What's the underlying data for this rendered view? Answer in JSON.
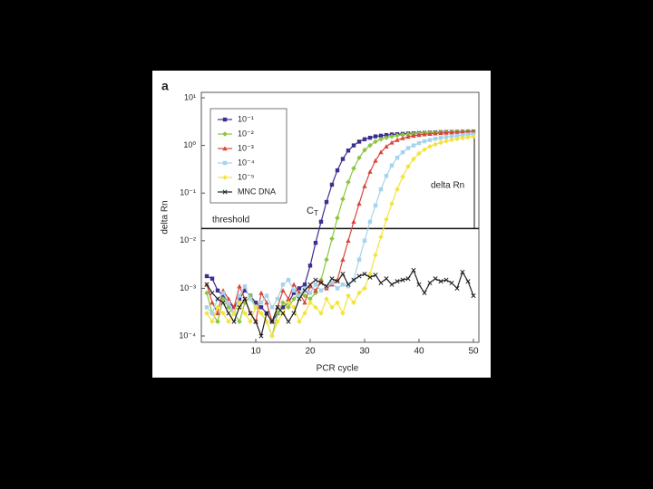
{
  "chart_data": {
    "type": "line",
    "panel_label": "a",
    "x_label": "PCR cycle",
    "y_label": "delta Rn",
    "log_y": true,
    "legend": "upper left",
    "threshold": 0.018,
    "annotations": {
      "threshold": "threshold",
      "delta_rn": "delta Rn",
      "ct": {
        "base": "C",
        "subscript": "T"
      }
    },
    "xlim": [
      0,
      51
    ],
    "xticks": [
      10,
      20,
      30,
      40,
      50
    ],
    "ylim": [
      0.0001,
      10
    ],
    "yticks": [
      {
        "value": 10,
        "label": "10¹"
      },
      {
        "value": 1,
        "label": "10⁰"
      },
      {
        "value": 0.1,
        "label": "10⁻¹"
      },
      {
        "value": 0.01,
        "label": "10⁻²"
      },
      {
        "value": 0.001,
        "label": "10⁻³"
      },
      {
        "value": 0.0001,
        "label": "10⁻⁴"
      }
    ],
    "x": [
      1,
      2,
      3,
      4,
      5,
      6,
      7,
      8,
      9,
      10,
      11,
      12,
      13,
      14,
      15,
      16,
      17,
      18,
      19,
      20,
      21,
      22,
      23,
      24,
      25,
      26,
      27,
      28,
      29,
      30,
      31,
      32,
      33,
      34,
      35,
      36,
      37,
      38,
      39,
      40,
      41,
      42,
      43,
      44,
      45,
      46,
      47,
      48,
      49,
      50
    ],
    "series": [
      {
        "name": "10⁻¹",
        "color": "#3b2f8f",
        "marker": "square",
        "values": [
          0.0018,
          0.0016,
          0.0009,
          0.0007,
          0.0005,
          0.0004,
          0.0006,
          0.0009,
          0.0007,
          0.0005,
          0.0004,
          0.0003,
          0.0002,
          0.0003,
          0.0004,
          0.0005,
          0.0008,
          0.001,
          0.0012,
          0.003,
          0.009,
          0.025,
          0.065,
          0.15,
          0.3,
          0.52,
          0.78,
          1.0,
          1.2,
          1.35,
          1.45,
          1.55,
          1.6,
          1.65,
          1.7,
          1.72,
          1.75,
          1.78,
          1.8,
          1.82,
          1.84,
          1.86,
          1.88,
          1.9,
          1.91,
          1.92,
          1.93,
          1.94,
          1.95,
          1.96
        ]
      },
      {
        "name": "10⁻²",
        "color": "#8cc63f",
        "marker": "diamond",
        "values": [
          0.0008,
          0.0003,
          0.0002,
          0.0006,
          0.0004,
          0.0003,
          0.0002,
          0.0005,
          0.0007,
          0.0004,
          0.0003,
          0.0002,
          0.0001,
          0.0003,
          0.0005,
          0.0004,
          0.0006,
          0.0008,
          0.0007,
          0.0006,
          0.0008,
          0.0015,
          0.004,
          0.011,
          0.03,
          0.075,
          0.17,
          0.33,
          0.55,
          0.8,
          1.0,
          1.2,
          1.35,
          1.45,
          1.55,
          1.62,
          1.68,
          1.72,
          1.76,
          1.8,
          1.83,
          1.86,
          1.88,
          1.9,
          1.92,
          1.94,
          1.95,
          1.96,
          1.97,
          1.98
        ]
      },
      {
        "name": "10⁻³",
        "color": "#d9473c",
        "marker": "triangle",
        "values": [
          0.0012,
          0.0005,
          0.0003,
          0.0009,
          0.0006,
          0.0004,
          0.0011,
          0.0006,
          0.0003,
          0.0002,
          0.0008,
          0.0005,
          0.0002,
          0.0004,
          0.0009,
          0.0006,
          0.0012,
          0.0008,
          0.0005,
          0.0011,
          0.0009,
          0.0014,
          0.001,
          0.0012,
          0.0015,
          0.004,
          0.01,
          0.025,
          0.06,
          0.14,
          0.28,
          0.48,
          0.72,
          0.95,
          1.15,
          1.3,
          1.42,
          1.52,
          1.6,
          1.66,
          1.71,
          1.75,
          1.79,
          1.82,
          1.85,
          1.88,
          1.9,
          1.92,
          1.94,
          1.95
        ]
      },
      {
        "name": "10⁻⁴",
        "color": "#a6d3ec",
        "marker": "square",
        "values": [
          0.0004,
          0.0003,
          0.0006,
          0.0008,
          0.0005,
          0.0003,
          0.0007,
          0.0011,
          0.0006,
          0.0004,
          0.0005,
          0.0007,
          0.0004,
          0.0006,
          0.0012,
          0.0015,
          0.0009,
          0.0007,
          0.001,
          0.0008,
          0.0012,
          0.0009,
          0.0011,
          0.0013,
          0.001,
          0.0012,
          0.0011,
          0.0015,
          0.004,
          0.01,
          0.025,
          0.055,
          0.12,
          0.23,
          0.38,
          0.55,
          0.72,
          0.88,
          1.0,
          1.12,
          1.22,
          1.3,
          1.38,
          1.44,
          1.5,
          1.55,
          1.6,
          1.64,
          1.68,
          1.7
        ]
      },
      {
        "name": "10⁻⁵",
        "color": "#f3e43a",
        "marker": "diamond",
        "values": [
          0.0003,
          0.0002,
          0.0004,
          0.0003,
          0.0002,
          0.0003,
          0.0005,
          0.0003,
          0.0002,
          0.0004,
          0.0003,
          0.0002,
          0.0001,
          0.0002,
          0.0003,
          0.0005,
          0.0004,
          0.0002,
          0.0003,
          0.0005,
          0.0004,
          0.0003,
          0.0006,
          0.0004,
          0.0005,
          0.0003,
          0.0007,
          0.0005,
          0.0008,
          0.001,
          0.002,
          0.005,
          0.012,
          0.028,
          0.06,
          0.12,
          0.22,
          0.36,
          0.52,
          0.68,
          0.82,
          0.95,
          1.05,
          1.15,
          1.23,
          1.3,
          1.37,
          1.43,
          1.48,
          1.52
        ]
      },
      {
        "name": "MNC DNA",
        "color": "#222222",
        "marker": "x",
        "values": [
          0.0012,
          0.0008,
          0.0006,
          0.0005,
          0.0003,
          0.0002,
          0.0004,
          0.0006,
          0.0003,
          0.0002,
          0.0001,
          0.0003,
          0.0002,
          0.0004,
          0.0003,
          0.0002,
          0.0003,
          0.0006,
          0.0009,
          0.0012,
          0.0015,
          0.0013,
          0.0011,
          0.0016,
          0.0014,
          0.002,
          0.0012,
          0.0015,
          0.0018,
          0.002,
          0.0017,
          0.0019,
          0.0013,
          0.0016,
          0.0012,
          0.0014,
          0.0015,
          0.0016,
          0.0024,
          0.0012,
          0.0008,
          0.0013,
          0.0016,
          0.0014,
          0.0015,
          0.0013,
          0.001,
          0.0022,
          0.0014,
          0.0007
        ]
      }
    ]
  }
}
